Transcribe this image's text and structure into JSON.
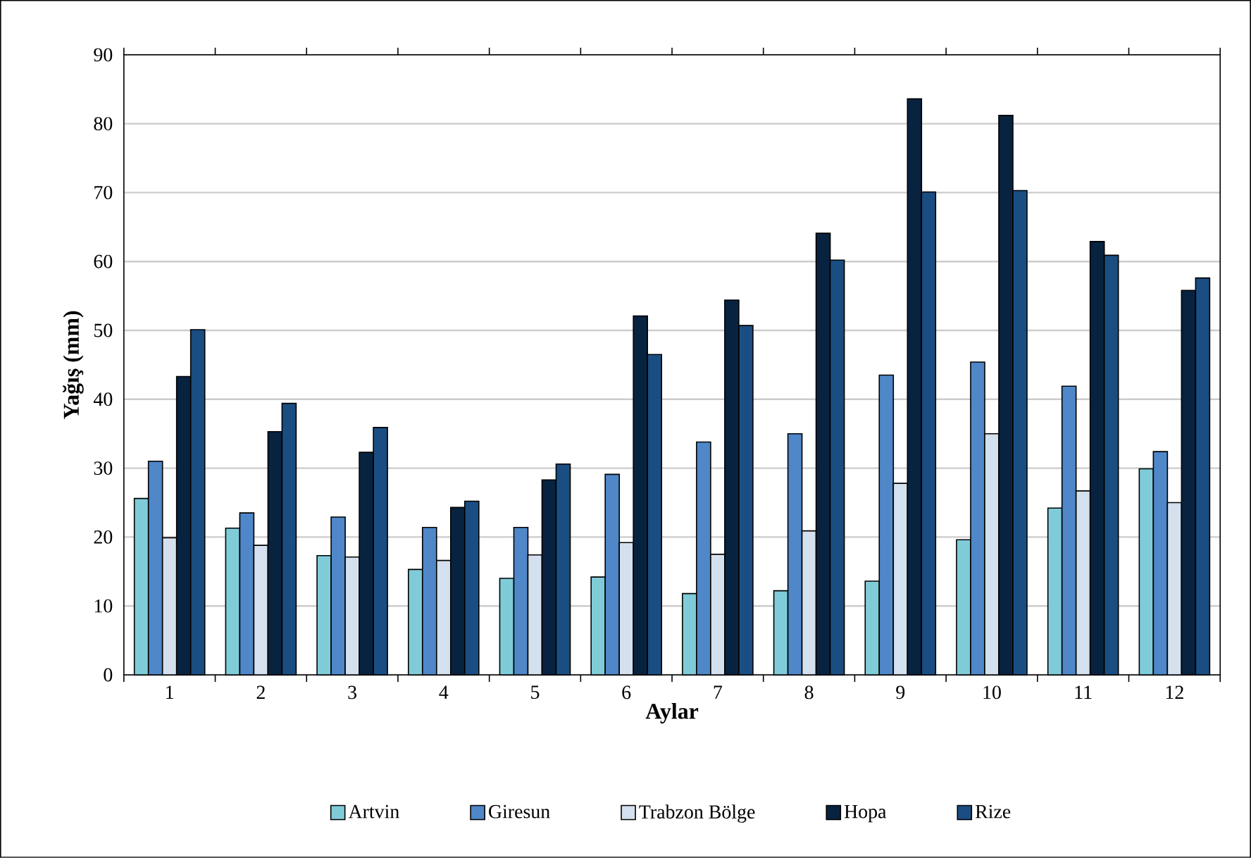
{
  "chart_data": {
    "type": "bar",
    "xlabel": "Aylar",
    "ylabel": "Yağış (mm)",
    "categories": [
      "1",
      "2",
      "3",
      "4",
      "5",
      "6",
      "7",
      "8",
      "9",
      "10",
      "11",
      "12"
    ],
    "series": [
      {
        "name": "Artvin",
        "color": "#7fccd8",
        "values": [
          25.6,
          21.3,
          17.3,
          15.3,
          14.0,
          14.2,
          11.8,
          12.2,
          13.6,
          19.6,
          24.2,
          29.9
        ]
      },
      {
        "name": "Giresun",
        "color": "#4f87c8",
        "values": [
          31.0,
          23.5,
          22.9,
          21.4,
          21.4,
          29.1,
          33.8,
          35.0,
          43.5,
          45.4,
          41.9,
          32.4
        ]
      },
      {
        "name": "Trabzon Bölge",
        "color": "#d4e0ee",
        "values": [
          19.9,
          18.8,
          17.1,
          16.6,
          17.4,
          19.2,
          17.5,
          20.9,
          27.8,
          35.0,
          26.7,
          25.0
        ]
      },
      {
        "name": "Hopa",
        "color": "#082340",
        "values": [
          43.3,
          35.3,
          32.3,
          24.3,
          28.3,
          52.1,
          54.4,
          64.1,
          83.6,
          81.2,
          62.9,
          55.8
        ]
      },
      {
        "name": "Rize",
        "color": "#1a4e82",
        "values": [
          50.1,
          39.4,
          35.9,
          25.2,
          30.6,
          46.5,
          50.7,
          60.2,
          70.1,
          70.3,
          60.9,
          57.6
        ]
      }
    ],
    "ylim": [
      0,
      90
    ],
    "yticks": [
      0,
      10,
      20,
      30,
      40,
      50,
      60,
      70,
      80,
      90
    ],
    "grid": "y",
    "legend": "bottom"
  }
}
